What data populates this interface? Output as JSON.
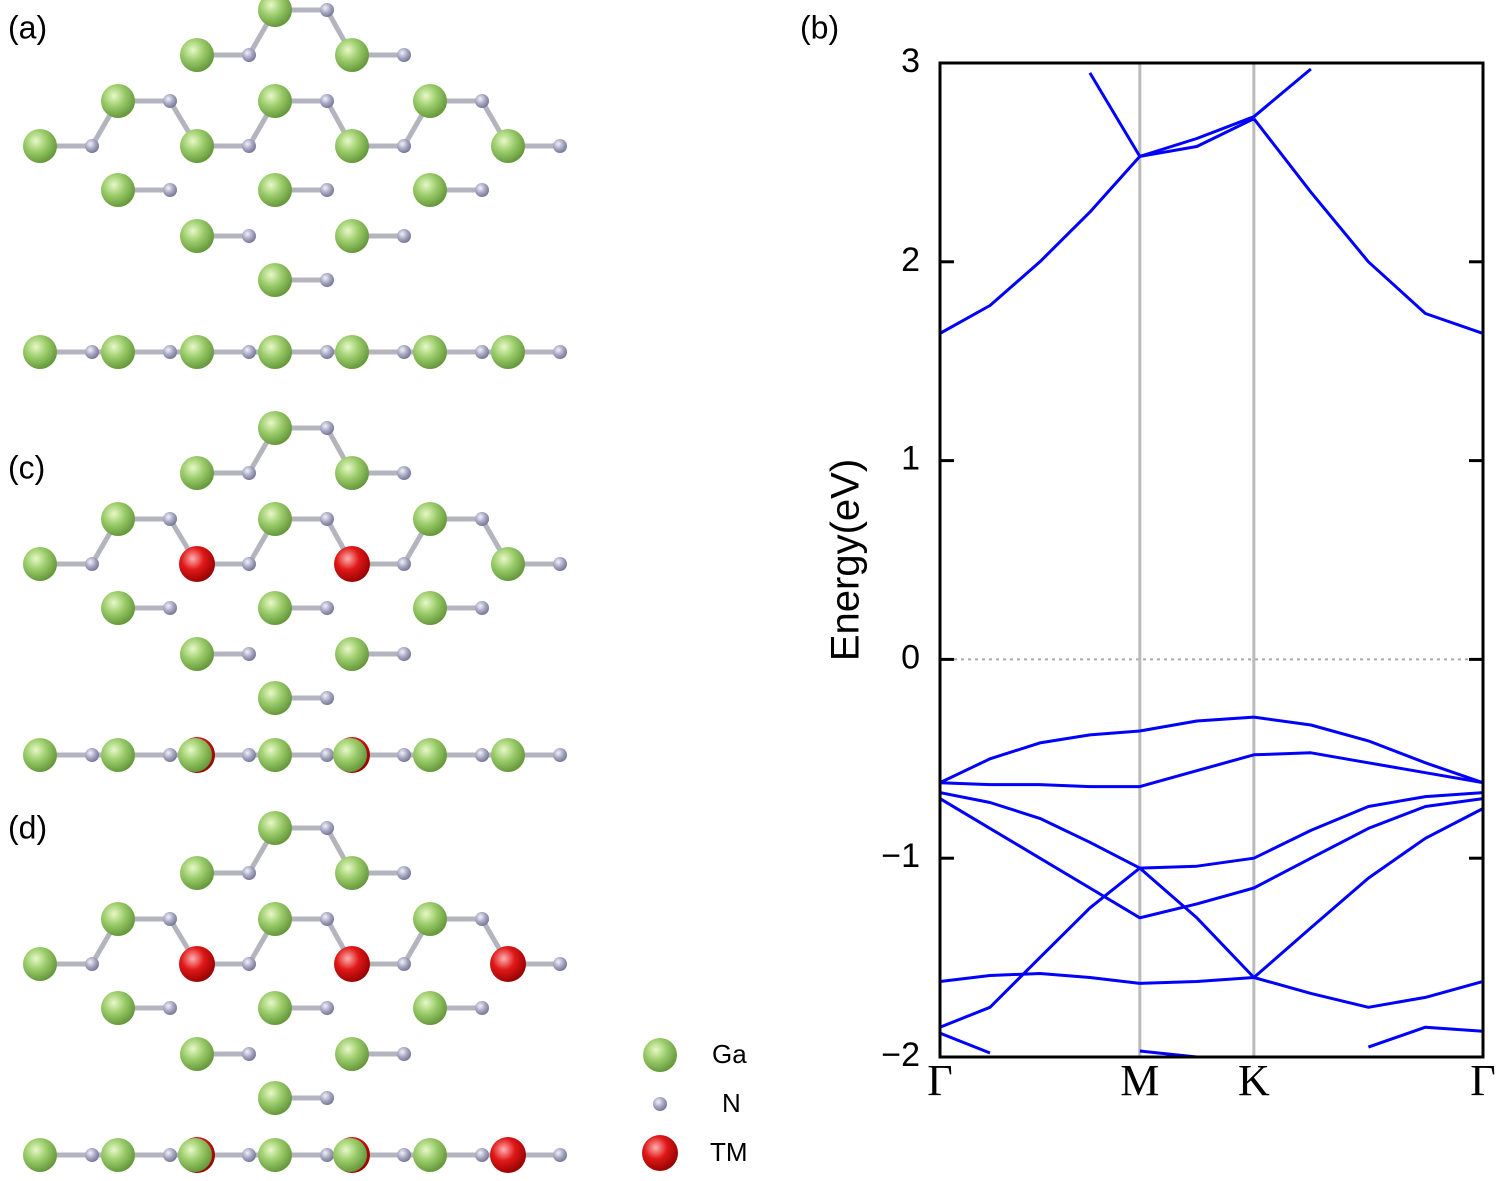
{
  "panel_labels": [
    "(a)",
    "(b)",
    "(c)",
    "(d)"
  ],
  "legend": [
    "Ga",
    "N",
    "TM"
  ],
  "chart_data": {
    "type": "line",
    "y_label": "Energy(eV)",
    "xlim": [
      0,
      1
    ],
    "ylim": [
      -2,
      3
    ],
    "xticks": [
      {
        "value": 0,
        "label": "Γ"
      },
      {
        "value": 0.368,
        "label": "M"
      },
      {
        "value": 0.578,
        "label": "K"
      },
      {
        "value": 1,
        "label": "Γ"
      }
    ],
    "yticks": [
      {
        "value": -2,
        "label": "−2"
      },
      {
        "value": -1,
        "label": "−1"
      },
      0,
      1,
      2,
      3
    ],
    "reference_line": 0,
    "x": [
      0,
      0.092,
      0.184,
      0.276,
      0.368,
      0.473,
      0.578,
      0.683,
      0.789,
      0.894,
      1
    ],
    "series": [
      {
        "color": "#0000ff",
        "values": [
          1.64,
          1.78,
          2.0,
          2.25,
          2.53,
          2.58,
          2.72,
          2.35,
          2.0,
          1.74,
          1.64
        ]
      },
      {
        "color": "#0000ff",
        "values": [
          null,
          null,
          null,
          2.95,
          2.53,
          2.62,
          2.73,
          2.97,
          null,
          null,
          null
        ]
      },
      {
        "color": "#0000ff",
        "values": [
          -0.62,
          -0.5,
          -0.42,
          -0.38,
          -0.36,
          -0.31,
          -0.29,
          -0.33,
          -0.41,
          -0.52,
          -0.62
        ]
      },
      {
        "color": "#0000ff",
        "values": [
          -0.62,
          -0.63,
          -0.63,
          -0.64,
          -0.64,
          -0.56,
          -0.48,
          -0.47,
          -0.52,
          -0.57,
          -0.62
        ]
      },
      {
        "color": "#0000ff",
        "values": [
          -0.67,
          -0.72,
          -0.8,
          -0.92,
          -1.05,
          -1.04,
          -1.0,
          -0.86,
          -0.74,
          -0.69,
          -0.67
        ]
      },
      {
        "color": "#0000ff",
        "values": [
          -0.7,
          -0.85,
          -1.0,
          -1.15,
          -1.3,
          -1.23,
          -1.15,
          -1.0,
          -0.85,
          -0.74,
          -0.7
        ]
      },
      {
        "color": "#0000ff",
        "values": [
          -1.62,
          -1.59,
          -1.58,
          -1.6,
          -1.63,
          -1.62,
          -1.6,
          -1.68,
          -1.75,
          -1.7,
          -1.62
        ]
      },
      {
        "color": "#0000ff",
        "values": [
          -1.85,
          -1.75,
          -1.5,
          -1.25,
          -1.05,
          -1.3,
          -1.6,
          -1.35,
          -1.1,
          -0.9,
          -0.75
        ]
      },
      {
        "color": "#0000ff",
        "values": [
          -1.88,
          -1.98,
          null,
          null,
          -1.97,
          -2.0,
          null,
          null,
          -1.95,
          -1.85,
          -1.87
        ]
      }
    ]
  }
}
